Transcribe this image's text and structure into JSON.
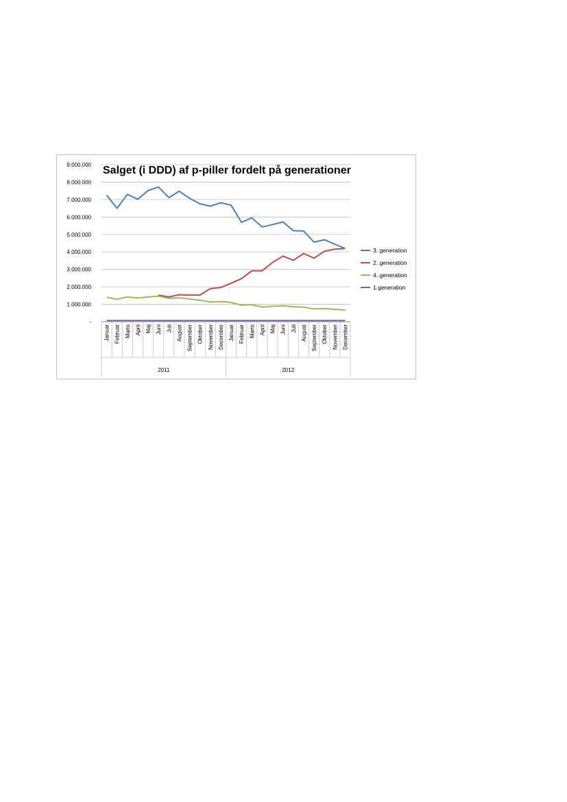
{
  "chart_data": {
    "type": "line",
    "title": "Salget (i DDD) af p-piller fordelt på generationer",
    "ylim": [
      0,
      9000000
    ],
    "y_ticks": [
      0,
      1000000,
      2000000,
      3000000,
      4000000,
      5000000,
      6000000,
      7000000,
      8000000,
      9000000
    ],
    "y_tick_labels": [
      "-",
      "1.000.000",
      "2.000.000",
      "3.000.000",
      "4.000.000",
      "5.000.000",
      "6.000.000",
      "7.000.000",
      "8.000.000",
      "9.000.000"
    ],
    "grid": true,
    "legend_position": "right",
    "month_labels": [
      "Januar",
      "Februar",
      "Marts",
      "April",
      "Maj",
      "Juni",
      "Juli",
      "August",
      "September",
      "Oktober",
      "November",
      "December",
      "Januar",
      "Februar",
      "Marts",
      "April",
      "Maj",
      "Juni",
      "Juli",
      "August",
      "September",
      "Oktober",
      "November",
      "December"
    ],
    "group_labels": [
      "2011",
      "2012"
    ],
    "series": [
      {
        "name": "3. generation",
        "color": "#4a7ebb",
        "values": [
          7250000,
          6500000,
          7300000,
          7020000,
          7520000,
          7720000,
          7110000,
          7480000,
          7070000,
          6760000,
          6620000,
          6820000,
          6680000,
          5700000,
          5950000,
          5430000,
          5570000,
          5720000,
          5220000,
          5200000,
          4560000,
          4700000,
          4440000,
          4200000
        ]
      },
      {
        "name": "2. generation",
        "color": "#be4b48",
        "values": [
          0,
          0,
          0,
          0,
          0,
          1530000,
          1420000,
          1550000,
          1530000,
          1530000,
          1900000,
          1960000,
          2210000,
          2470000,
          2920000,
          2920000,
          3400000,
          3760000,
          3520000,
          3910000,
          3640000,
          4040000,
          4160000,
          4200000
        ]
      },
      {
        "name": "4. generation",
        "color": "#98b954",
        "values": [
          1400000,
          1290000,
          1420000,
          1360000,
          1420000,
          1470000,
          1340000,
          1370000,
          1310000,
          1230000,
          1130000,
          1160000,
          1110000,
          950000,
          980000,
          840000,
          890000,
          910000,
          860000,
          840000,
          730000,
          760000,
          710000,
          670000
        ]
      },
      {
        "name": "1.generation",
        "color": "#7d60a0",
        "values": [
          70000,
          70000,
          70000,
          70000,
          70000,
          70000,
          70000,
          70000,
          70000,
          70000,
          70000,
          70000,
          70000,
          70000,
          70000,
          70000,
          70000,
          70000,
          70000,
          70000,
          70000,
          70000,
          70000,
          70000
        ]
      }
    ]
  }
}
